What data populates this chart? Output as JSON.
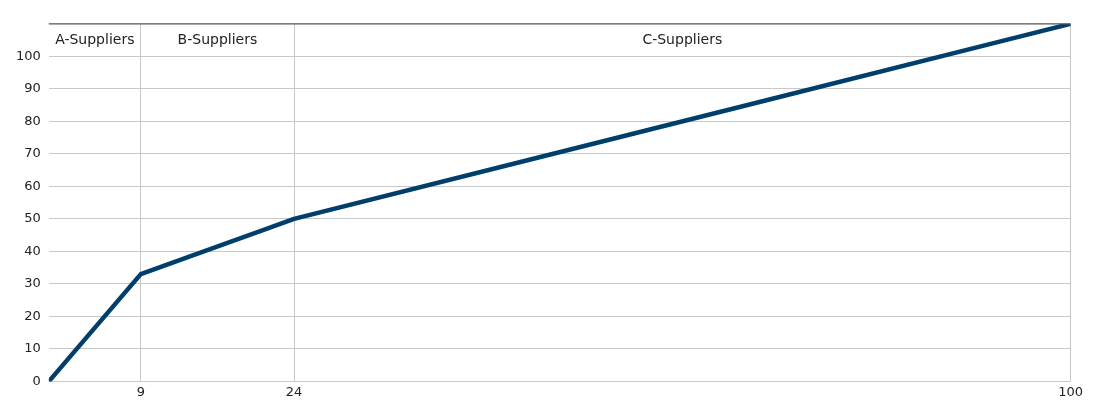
{
  "chart_data": {
    "type": "line",
    "x": [
      0,
      9,
      24,
      100
    ],
    "series": [
      {
        "color": "#003f6b",
        "values": [
          0,
          33,
          50,
          110
        ]
      }
    ],
    "xlim": [
      0,
      100
    ],
    "xticks": [
      9,
      24,
      100
    ],
    "ylim": [
      0,
      110
    ],
    "yticks": [
      0,
      10,
      20,
      30,
      40,
      50,
      60,
      70,
      80,
      90,
      100
    ],
    "annotations": [
      "A-Suppliers",
      "B-Suppliers",
      "C-Suppliers"
    ],
    "grid": true,
    "legend": false,
    "marker": "none",
    "line_style": "solid"
  }
}
